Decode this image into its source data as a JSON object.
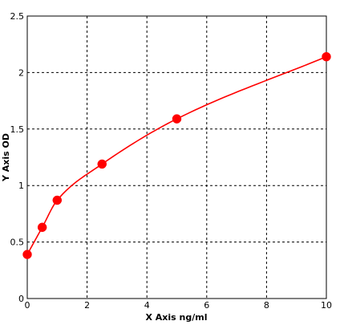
{
  "chart_data": {
    "type": "scatter",
    "title": "",
    "xlabel": "X Axis ng/ml",
    "ylabel": "Y Axis OD",
    "xlim": [
      0,
      10
    ],
    "ylim": [
      0,
      2.5
    ],
    "x_ticks": [
      0,
      2,
      4,
      6,
      8,
      10
    ],
    "y_ticks": [
      0,
      0.5,
      1,
      1.5,
      2,
      2.5
    ],
    "x_tick_labels": [
      "0",
      "2",
      "4",
      "6",
      "8",
      "10"
    ],
    "y_tick_labels": [
      "0",
      "0.5",
      "1",
      "1.5",
      "2",
      "2.5"
    ],
    "grid": true,
    "legend": "none",
    "series": [
      {
        "points": [
          {
            "x": 0,
            "y": 0.39
          },
          {
            "x": 0.5,
            "y": 0.63
          },
          {
            "x": 1,
            "y": 0.87
          },
          {
            "x": 2.5,
            "y": 1.19
          },
          {
            "x": 5,
            "y": 1.59
          },
          {
            "x": 10,
            "y": 2.14
          }
        ],
        "color": "#ff0000",
        "fit_curve": true
      }
    ]
  }
}
